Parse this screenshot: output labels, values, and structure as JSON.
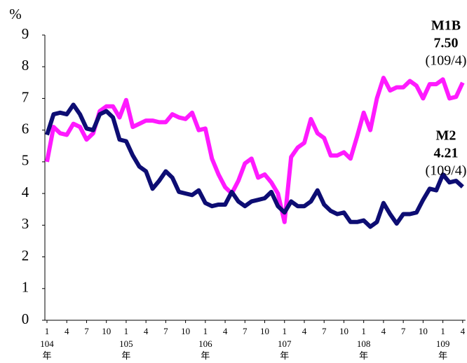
{
  "chart_data": {
    "type": "line",
    "ylabel": "%",
    "ylim": [
      0,
      9
    ],
    "yticks": [
      0,
      1,
      2,
      3,
      4,
      5,
      6,
      7,
      8,
      9
    ],
    "categories": [
      "1",
      null,
      null,
      "4",
      null,
      null,
      "7",
      null,
      null,
      "10",
      null,
      null,
      "1",
      null,
      null,
      "4",
      null,
      null,
      "7",
      null,
      null,
      "10",
      null,
      null,
      "1",
      null,
      null,
      "4",
      null,
      null,
      "7",
      null,
      null,
      "10",
      null,
      null,
      "1",
      null,
      null,
      "4",
      null,
      null,
      "7",
      null,
      null,
      "10",
      null,
      null,
      "1",
      null,
      null,
      "4",
      null,
      null,
      "7",
      null,
      null,
      "10",
      null,
      null,
      "1",
      null,
      null,
      "4"
    ],
    "year_labels": [
      "104",
      "105",
      "106",
      "107",
      "108",
      "109"
    ],
    "year_unit": "年",
    "series": [
      {
        "name": "M1B",
        "color": "#ff1aff",
        "end_label": "7.50",
        "end_period": "(109/4)",
        "values": [
          5.0,
          6.1,
          5.9,
          5.85,
          6.2,
          6.1,
          5.7,
          5.9,
          6.6,
          6.75,
          6.75,
          6.4,
          6.95,
          6.1,
          6.2,
          6.3,
          6.3,
          6.25,
          6.25,
          6.5,
          6.4,
          6.35,
          6.55,
          6.0,
          6.05,
          5.1,
          4.6,
          4.2,
          4.0,
          4.4,
          4.95,
          5.1,
          4.5,
          4.6,
          4.35,
          4.0,
          3.1,
          5.15,
          5.45,
          5.6,
          6.35,
          5.9,
          5.75,
          5.2,
          5.2,
          5.3,
          5.1,
          5.8,
          6.55,
          6.0,
          7.0,
          7.65,
          7.25,
          7.35,
          7.35,
          7.55,
          7.4,
          7.0,
          7.45,
          7.45,
          7.6,
          7.0,
          7.05,
          7.5
        ]
      },
      {
        "name": "M2",
        "color": "#0d0d73",
        "end_label": "4.21",
        "end_period": "(109/4)",
        "values": [
          5.85,
          6.5,
          6.55,
          6.5,
          6.8,
          6.5,
          6.05,
          6.0,
          6.5,
          6.6,
          6.4,
          5.7,
          5.65,
          5.2,
          4.85,
          4.7,
          4.15,
          4.4,
          4.7,
          4.5,
          4.05,
          4.0,
          3.95,
          4.1,
          3.7,
          3.6,
          3.65,
          3.65,
          4.05,
          3.75,
          3.6,
          3.75,
          3.8,
          3.85,
          4.05,
          3.6,
          3.4,
          3.75,
          3.6,
          3.6,
          3.75,
          4.1,
          3.65,
          3.45,
          3.35,
          3.4,
          3.1,
          3.1,
          3.15,
          2.95,
          3.1,
          3.7,
          3.35,
          3.05,
          3.35,
          3.35,
          3.4,
          3.8,
          4.15,
          4.1,
          4.6,
          4.35,
          4.4,
          4.21
        ]
      }
    ]
  }
}
